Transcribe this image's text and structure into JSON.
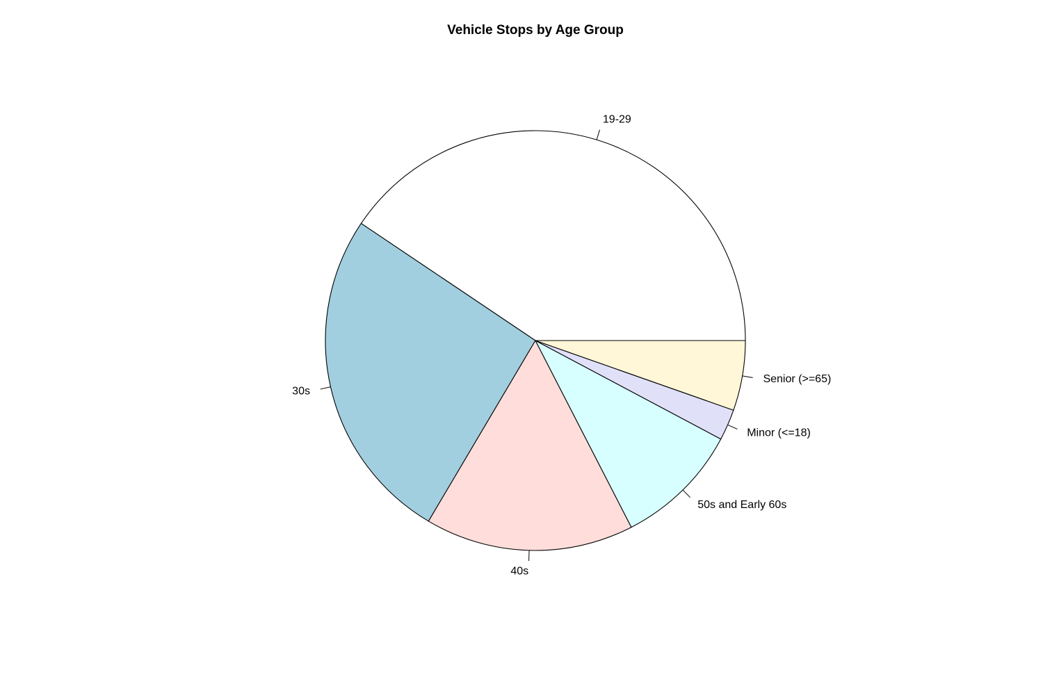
{
  "chart_data": {
    "type": "pie",
    "title": "Vehicle Stops by Age Group",
    "start_angle_deg": 0,
    "direction": "counterclockwise",
    "slices": [
      {
        "label": "19-29",
        "value": 40.7,
        "color": "#FFFFFF"
      },
      {
        "label": "30s",
        "value": 26.0,
        "color": "#A1CFDF"
      },
      {
        "label": "40s",
        "value": 16.1,
        "color": "#FFDDDB"
      },
      {
        "label": "50s and Early 60s",
        "value": 9.7,
        "color": "#D7FFFF"
      },
      {
        "label": "Minor (<=18)",
        "value": 2.4,
        "color": "#E0E0F9"
      },
      {
        "label": "Senior (>=65)",
        "value": 5.4,
        "color": "#FFF7D7"
      }
    ]
  }
}
